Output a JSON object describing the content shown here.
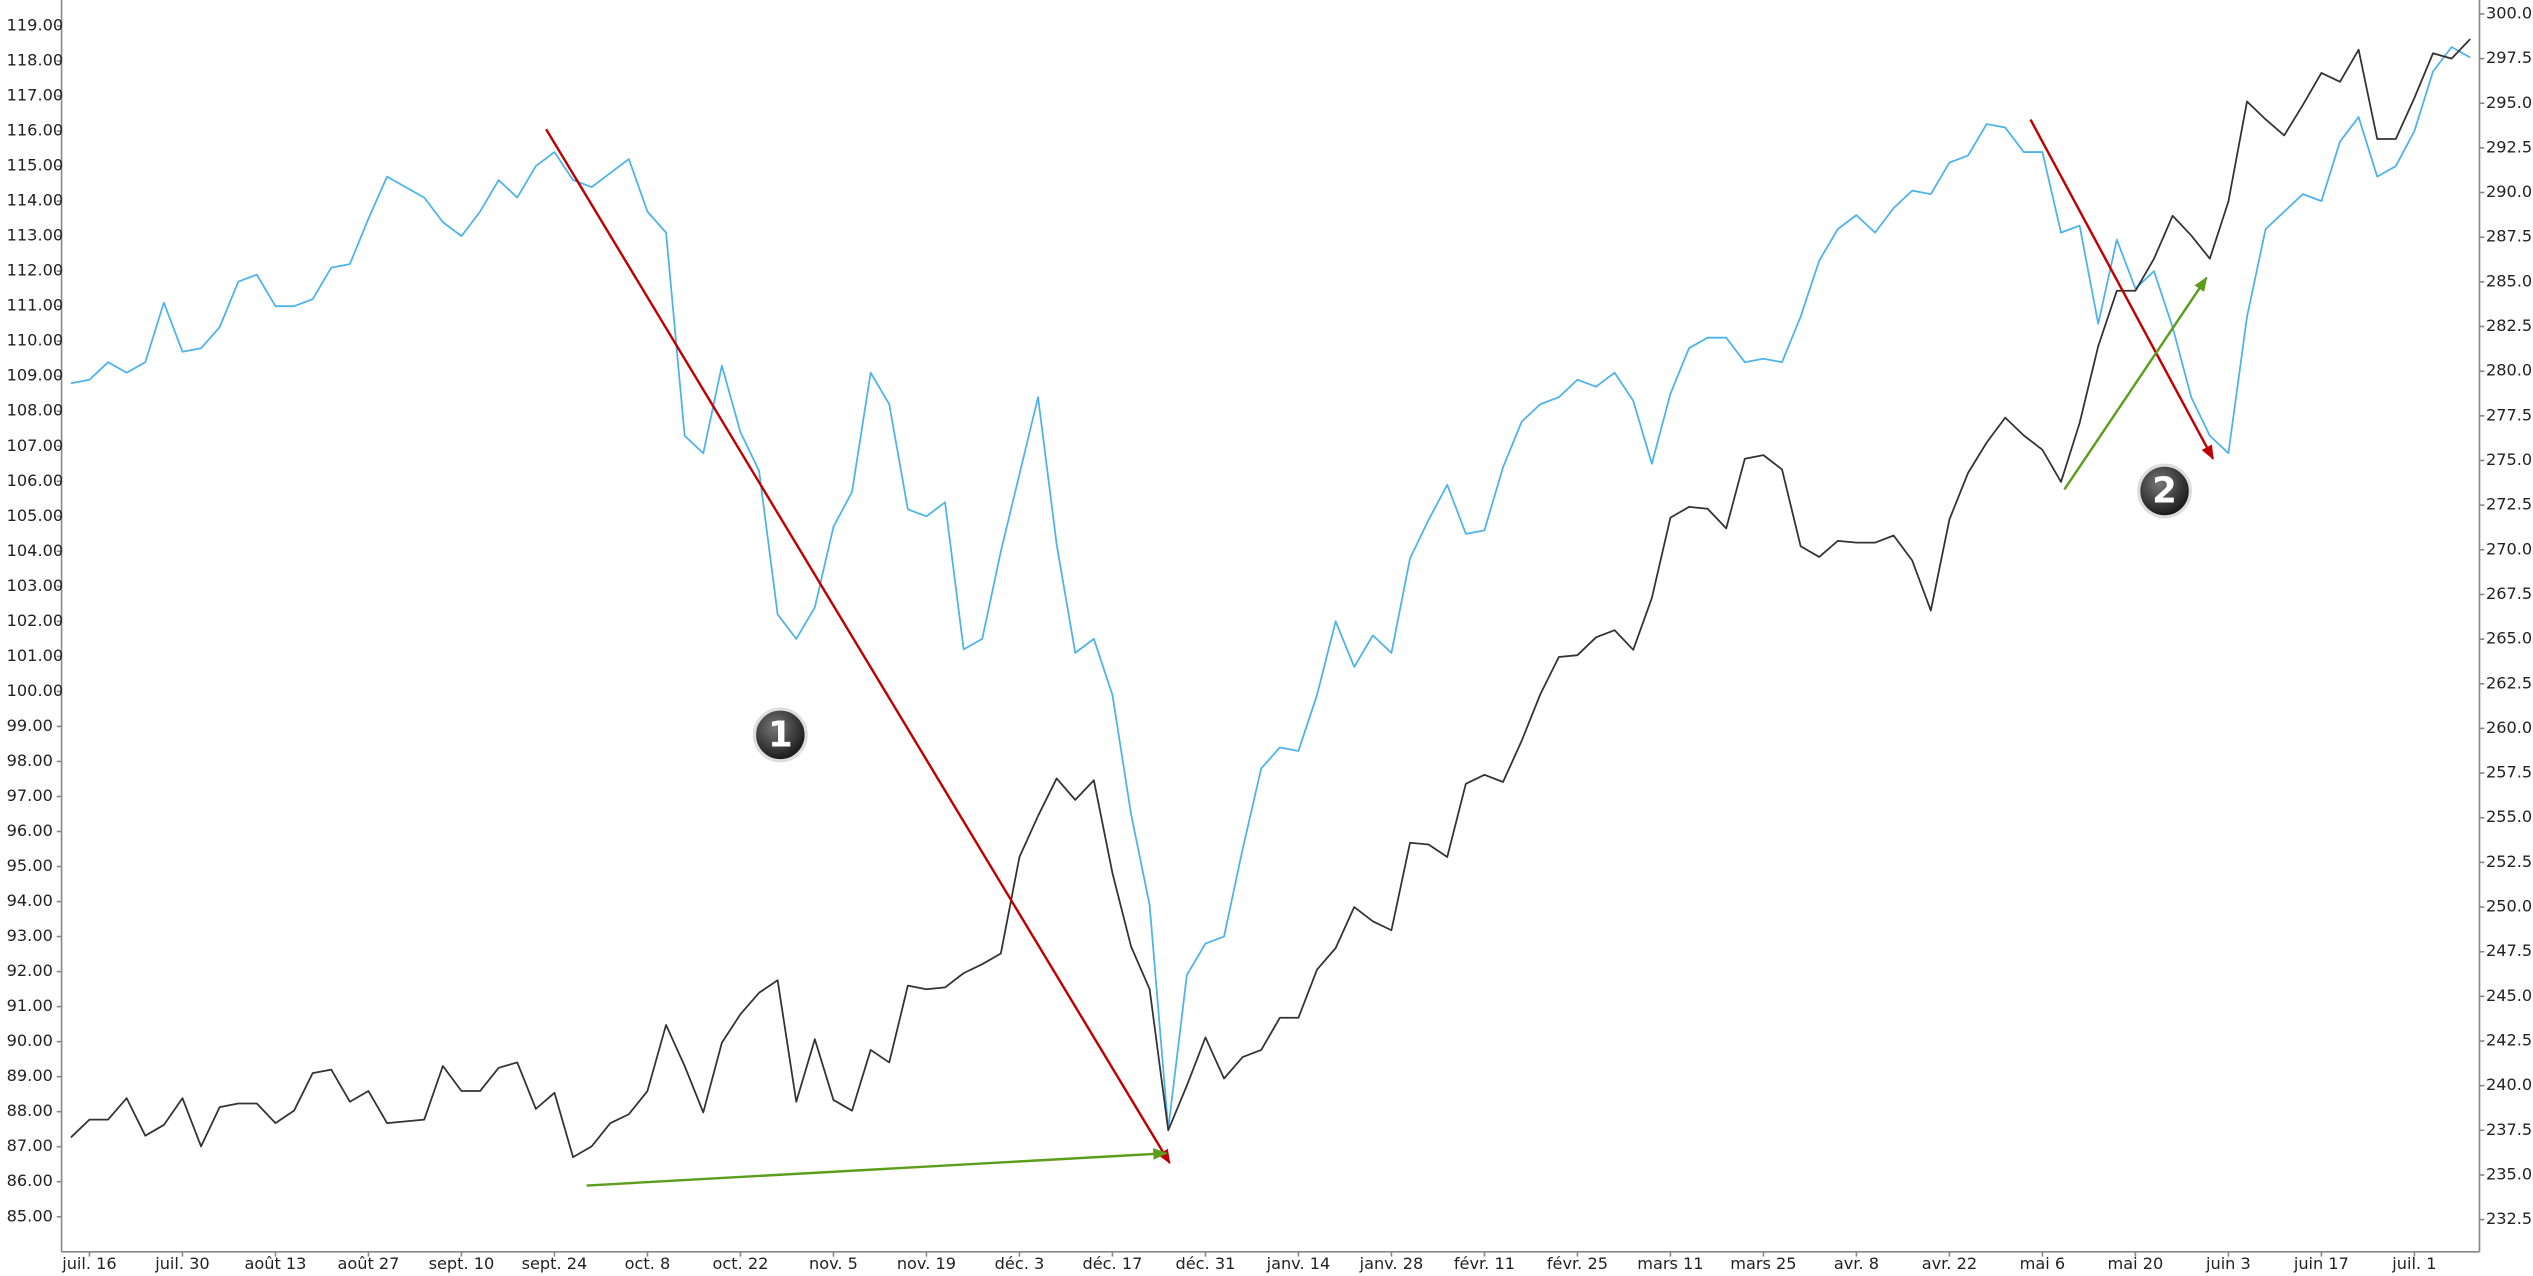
{
  "chart_data": {
    "type": "line",
    "categories": [
      null,
      "juil. 16",
      null,
      null,
      null,
      null,
      "juil. 30",
      null,
      null,
      null,
      null,
      "août 13",
      null,
      null,
      null,
      null,
      "août 27",
      null,
      null,
      null,
      null,
      "sept. 10",
      null,
      null,
      null,
      null,
      "sept. 24",
      null,
      null,
      null,
      null,
      "oct. 8",
      null,
      null,
      null,
      null,
      "oct. 22",
      null,
      null,
      null,
      null,
      "nov. 5",
      null,
      null,
      null,
      null,
      "nov. 19",
      null,
      null,
      null,
      null,
      "déc. 3",
      null,
      null,
      null,
      null,
      "déc. 17",
      null,
      null,
      null,
      null,
      "déc. 31",
      null,
      null,
      null,
      null,
      "janv. 14",
      null,
      null,
      null,
      null,
      "janv. 28",
      null,
      null,
      null,
      null,
      "févr. 11",
      null,
      null,
      null,
      null,
      "févr. 25",
      null,
      null,
      null,
      null,
      "mars 11",
      null,
      null,
      null,
      null,
      "mars 25",
      null,
      null,
      null,
      null,
      "avr. 8",
      null,
      null,
      null,
      null,
      "avr. 22",
      null,
      null,
      null,
      null,
      "mai 6",
      null,
      null,
      null,
      null,
      "mai 20",
      null,
      null,
      null,
      null,
      "juin 3",
      null,
      null,
      null,
      null,
      "juin 17",
      null,
      null,
      null,
      null,
      "juil. 1",
      null,
      null,
      null
    ],
    "series": [
      {
        "color": "#4db3ea",
        "axis": "y",
        "values": [
          108.8,
          108.9,
          109.4,
          109.1,
          109.4,
          111.1,
          109.7,
          109.8,
          110.4,
          111.7,
          111.9,
          111.0,
          111.0,
          111.2,
          112.1,
          112.2,
          113.5,
          114.7,
          114.4,
          114.1,
          113.4,
          113.0,
          113.7,
          114.6,
          114.1,
          115.0,
          115.4,
          114.6,
          114.4,
          114.8,
          115.2,
          113.7,
          113.1,
          107.3,
          106.8,
          109.3,
          107.4,
          106.3,
          102.2,
          101.5,
          102.4,
          104.7,
          105.7,
          109.1,
          108.2,
          105.2,
          105.0,
          105.4,
          101.2,
          101.5,
          104.0,
          106.2,
          108.4,
          104.2,
          101.1,
          101.5,
          99.9,
          96.5,
          93.9,
          87.5,
          91.9,
          92.8,
          93.0,
          95.5,
          97.8,
          98.4,
          98.3,
          99.9,
          102.0,
          100.7,
          101.6,
          101.1,
          103.8,
          104.9,
          105.9,
          104.5,
          104.6,
          106.4,
          107.7,
          108.2,
          108.4,
          108.9,
          108.7,
          109.1,
          108.3,
          106.5,
          108.5,
          109.8,
          110.1,
          110.1,
          109.4,
          109.5,
          109.4,
          110.7,
          112.3,
          113.2,
          113.6,
          113.1,
          113.8,
          114.3,
          114.2,
          115.1,
          115.3,
          116.2,
          116.1,
          115.4,
          115.4,
          113.1,
          113.3,
          110.5,
          112.9,
          111.5,
          112.0,
          110.4,
          108.4,
          107.3,
          106.8,
          110.7,
          113.2,
          113.7,
          114.2,
          114.0,
          115.7,
          116.4,
          114.7,
          115.0,
          116.0,
          117.7,
          118.4,
          118.1
        ]
      },
      {
        "color": "#333333",
        "axis": "y2",
        "values": [
          237.1,
          238.1,
          238.1,
          239.3,
          237.2,
          237.8,
          239.3,
          236.6,
          238.8,
          239.0,
          239.0,
          237.9,
          238.6,
          240.7,
          240.9,
          239.1,
          239.7,
          237.9,
          238.0,
          238.1,
          241.1,
          239.7,
          239.7,
          241.0,
          241.3,
          238.7,
          239.6,
          236.0,
          236.6,
          237.9,
          238.4,
          239.7,
          243.4,
          241.1,
          238.5,
          242.4,
          244.0,
          245.2,
          245.9,
          239.1,
          242.6,
          239.2,
          238.6,
          242.0,
          241.3,
          245.6,
          245.4,
          245.5,
          246.3,
          246.8,
          247.4,
          252.8,
          255.1,
          257.2,
          256.0,
          257.1,
          251.9,
          247.8,
          245.4,
          237.5,
          240.0,
          242.7,
          240.4,
          241.6,
          242.0,
          243.8,
          243.8,
          246.5,
          247.7,
          250.0,
          249.2,
          248.7,
          253.6,
          253.5,
          252.8,
          256.9,
          257.4,
          257.0,
          259.3,
          261.9,
          264.0,
          264.1,
          265.1,
          265.5,
          264.4,
          267.3,
          271.8,
          272.4,
          272.3,
          271.2,
          275.1,
          275.3,
          274.5,
          270.2,
          269.6,
          270.5,
          270.4,
          270.4,
          270.8,
          269.4,
          266.6,
          271.7,
          274.3,
          276.0,
          277.4,
          276.4,
          275.6,
          273.8,
          277.1,
          281.4,
          284.5,
          284.5,
          286.3,
          288.7,
          287.6,
          286.3,
          289.5,
          295.1,
          294.1,
          293.2,
          294.9,
          296.7,
          296.2,
          298.0,
          293.0,
          293.0,
          295.3,
          297.8,
          297.5,
          298.6
        ]
      }
    ],
    "ylim": [
      84,
      119.65
    ],
    "yticks": [
      {
        "value": 85,
        "label": "85.00"
      },
      {
        "value": 86,
        "label": "86.00"
      },
      {
        "value": 87,
        "label": "87.00"
      },
      {
        "value": 88,
        "label": "88.00"
      },
      {
        "value": 89,
        "label": "89.00"
      },
      {
        "value": 90,
        "label": "90.00"
      },
      {
        "value": 91,
        "label": "91.00"
      },
      {
        "value": 92,
        "label": "92.00"
      },
      {
        "value": 93,
        "label": "93.00"
      },
      {
        "value": 94,
        "label": "94.00"
      },
      {
        "value": 95,
        "label": "95.00"
      },
      {
        "value": 96,
        "label": "96.00"
      },
      {
        "value": 97,
        "label": "97.00"
      },
      {
        "value": 98,
        "label": "98.00"
      },
      {
        "value": 99,
        "label": "99.00"
      },
      {
        "value": 100,
        "label": "100.00"
      },
      {
        "value": 101,
        "label": "101.00"
      },
      {
        "value": 102,
        "label": "102.00"
      },
      {
        "value": 103,
        "label": "103.00"
      },
      {
        "value": 104,
        "label": "104.00"
      },
      {
        "value": 105,
        "label": "105.00"
      },
      {
        "value": 106,
        "label": "106.00"
      },
      {
        "value": 107,
        "label": "107.00"
      },
      {
        "value": 108,
        "label": "108.00"
      },
      {
        "value": 109,
        "label": "109.00"
      },
      {
        "value": 110,
        "label": "110.00"
      },
      {
        "value": 111,
        "label": "111.00"
      },
      {
        "value": 112,
        "label": "112.00"
      },
      {
        "value": 113,
        "label": "113.00"
      },
      {
        "value": 114,
        "label": "114.00"
      },
      {
        "value": 115,
        "label": "115.00"
      },
      {
        "value": 116,
        "label": "116.00"
      },
      {
        "value": 117,
        "label": "117.00"
      },
      {
        "value": 118,
        "label": "118.00"
      },
      {
        "value": 119,
        "label": "119.00"
      }
    ],
    "y2lim": [
      230.7,
      300.6
    ],
    "y2ticks": [
      {
        "value": 232.5,
        "label": "232.50"
      },
      {
        "value": 235,
        "label": "235.00"
      },
      {
        "value": 237.5,
        "label": "237.50"
      },
      {
        "value": 240,
        "label": "240.00"
      },
      {
        "value": 242.5,
        "label": "242.50"
      },
      {
        "value": 245,
        "label": "245.00"
      },
      {
        "value": 247.5,
        "label": "247.50"
      },
      {
        "value": 250,
        "label": "250.00"
      },
      {
        "value": 252.5,
        "label": "252.50"
      },
      {
        "value": 255,
        "label": "255.00"
      },
      {
        "value": 257.5,
        "label": "257.50"
      },
      {
        "value": 260,
        "label": "260.00"
      },
      {
        "value": 262.5,
        "label": "262.50"
      },
      {
        "value": 265,
        "label": "265.00"
      },
      {
        "value": 267.5,
        "label": "267.50"
      },
      {
        "value": 270,
        "label": "270.00"
      },
      {
        "value": 272.5,
        "label": "272.50"
      },
      {
        "value": 275,
        "label": "275.00"
      },
      {
        "value": 277.5,
        "label": "277.50"
      },
      {
        "value": 280,
        "label": "280.00"
      },
      {
        "value": 282.5,
        "label": "282.50"
      },
      {
        "value": 285,
        "label": "285.00"
      },
      {
        "value": 287.5,
        "label": "287.50"
      },
      {
        "value": 290,
        "label": "290.00"
      },
      {
        "value": 292.5,
        "label": "292.50"
      },
      {
        "value": 295,
        "label": "295.00"
      },
      {
        "value": 297.5,
        "label": "297.50"
      },
      {
        "value": 300,
        "label": "300.00"
      }
    ],
    "grid": false,
    "annotations": [
      "1",
      "2"
    ]
  }
}
